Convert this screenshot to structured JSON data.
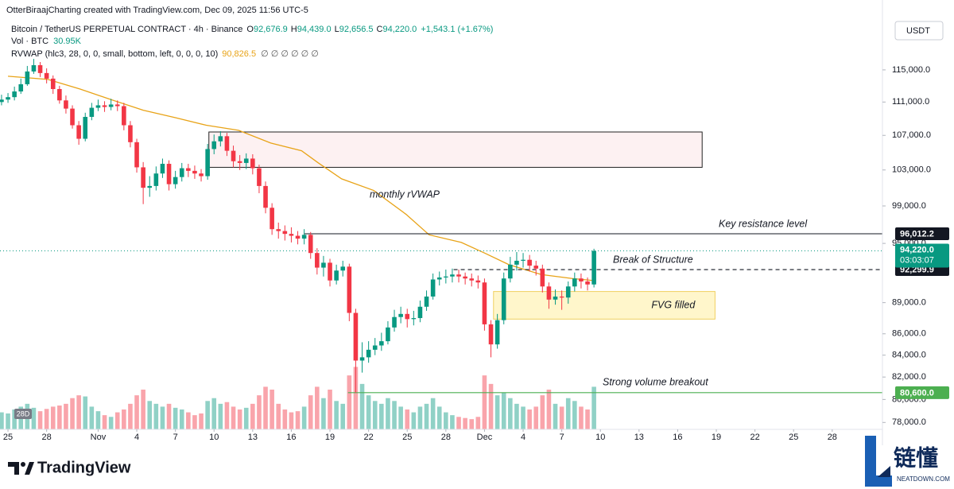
{
  "chart_data": {
    "type": "candlestick",
    "credit": "OtterBiraajCharting created with TradingView.com, Dec 09, 2025 11:56 UTC-5",
    "symbol": "Bitcoin / TetherUS PERPETUAL CONTRACT · 4h · Binance",
    "ohlc": [
      {
        "label": "O",
        "value": "92,676.9"
      },
      {
        "label": "H",
        "value": "94,439.0"
      },
      {
        "label": "L",
        "value": "92,656.5"
      },
      {
        "label": "C",
        "value": "94,220.0"
      }
    ],
    "change": "+1,543.1 (+1.67%)",
    "volume_legend": {
      "label": "Vol · BTC",
      "value": "30.95K"
    },
    "indicator": {
      "label": "RVWAP (hlc3, 28, 0, 0, small, bottom, left, 0, 0, 0, 10)",
      "value": "90,826.5",
      "extra": "∅ ∅ ∅ ∅ ∅ ∅"
    },
    "currency": "USDT",
    "badge": "28D",
    "brand": "TradingView",
    "corner_mark": {
      "text": "链懂",
      "sub": "NEATDOWN.COM"
    },
    "up_color": "#089981",
    "down_color": "#f23645",
    "log": true,
    "grid": false,
    "ylim": [
      77070,
      124200
    ],
    "yticks": [
      {
        "value": 115000,
        "label": "115,000.0"
      },
      {
        "value": 111000,
        "label": "111,000.0"
      },
      {
        "value": 107000,
        "label": "107,000.0"
      },
      {
        "value": 103000,
        "label": "103,000.0"
      },
      {
        "value": 99000,
        "label": "99,000.0"
      },
      {
        "value": 95000,
        "label": "95,000.0"
      },
      {
        "value": 89000,
        "label": "89,000.0"
      },
      {
        "value": 86000,
        "label": "86,000.0"
      },
      {
        "value": 84000,
        "label": "84,000.0"
      },
      {
        "value": 82000,
        "label": "82,000.0"
      },
      {
        "value": 80000,
        "label": "80,000.0"
      },
      {
        "value": 78000,
        "label": "78,000.0"
      }
    ],
    "xlim": [
      -0.62,
      67.9
    ],
    "xticks": [
      {
        "value": 0,
        "label": "25"
      },
      {
        "value": 3,
        "label": "28"
      },
      {
        "value": 7,
        "label": "Nov"
      },
      {
        "value": 10,
        "label": "4"
      },
      {
        "value": 13,
        "label": "7"
      },
      {
        "value": 16,
        "label": "10"
      },
      {
        "value": 19,
        "label": "13"
      },
      {
        "value": 22,
        "label": "16"
      },
      {
        "value": 25,
        "label": "19"
      },
      {
        "value": 28,
        "label": "22"
      },
      {
        "value": 31,
        "label": "25"
      },
      {
        "value": 34,
        "label": "28"
      },
      {
        "value": 37,
        "label": "Dec"
      },
      {
        "value": 40,
        "label": "4"
      },
      {
        "value": 43,
        "label": "7"
      },
      {
        "value": 46,
        "label": "10"
      },
      {
        "value": 49,
        "label": "13"
      },
      {
        "value": 52,
        "label": "16"
      },
      {
        "value": 55,
        "label": "19"
      },
      {
        "value": 58,
        "label": "22"
      },
      {
        "value": 61,
        "label": "25"
      },
      {
        "value": 64,
        "label": "28"
      }
    ],
    "vlim": [
      0,
      140
    ],
    "x": [
      -0.5,
      0,
      0.5,
      1,
      1.5,
      2,
      2.5,
      3,
      3.5,
      4,
      4.5,
      5,
      5.5,
      6,
      6.5,
      7,
      7.5,
      8,
      8.5,
      9,
      9.5,
      10,
      10.5,
      11,
      11.5,
      12,
      12.5,
      13,
      13.5,
      14,
      14.5,
      15,
      15.5,
      16,
      16.5,
      17,
      17.5,
      18,
      18.5,
      19,
      19.5,
      20,
      20.5,
      21,
      21.5,
      22,
      22.5,
      23,
      23.5,
      24,
      24.5,
      25,
      25.5,
      26,
      26.5,
      27,
      27.5,
      28,
      28.5,
      29,
      29.5,
      30,
      30.5,
      31,
      31.5,
      32,
      32.5,
      33,
      33.5,
      34,
      34.5,
      35,
      35.5,
      36,
      36.5,
      37,
      37.5,
      38,
      38.5,
      39,
      39.5,
      40,
      40.5,
      41,
      41.5,
      42,
      42.5,
      43,
      43.5,
      44,
      44.5,
      45,
      45.5
    ],
    "open": [
      111000,
      111300,
      111600,
      112300,
      113200,
      114800,
      115600,
      114600,
      113900,
      112600,
      111200,
      110200,
      108200,
      106600,
      109200,
      110300,
      110600,
      110400,
      110700,
      110500,
      108200,
      106200,
      103300,
      101000,
      101200,
      102600,
      103700,
      101400,
      102200,
      103200,
      102900,
      102600,
      102300,
      105400,
      106300,
      106900,
      105200,
      104000,
      103800,
      104300,
      103200,
      101200,
      98800,
      96500,
      96300,
      96000,
      95800,
      95500,
      95900,
      94000,
      92500,
      93000,
      91200,
      92200,
      92600,
      88000,
      83500,
      83800,
      84500,
      84900,
      85300,
      86600,
      87600,
      87900,
      87400,
      87500,
      88600,
      89600,
      91300,
      91500,
      91600,
      91800,
      91600,
      91400,
      91200,
      91000,
      86900,
      85000,
      87300,
      91400,
      92800,
      93200,
      93300,
      92700,
      92400,
      90600,
      89300,
      89600,
      89500,
      90600,
      91400,
      91100,
      90800
    ],
    "high": [
      111900,
      112100,
      112900,
      113900,
      115500,
      116400,
      116000,
      115200,
      114300,
      113000,
      111800,
      110600,
      108700,
      109700,
      110900,
      111300,
      111100,
      111400,
      111200,
      110900,
      108700,
      106600,
      103900,
      102300,
      103400,
      104300,
      104100,
      102900,
      103800,
      103700,
      103500,
      103100,
      106000,
      107100,
      107500,
      107300,
      105800,
      104700,
      104900,
      104800,
      103600,
      101700,
      99300,
      97200,
      96900,
      96700,
      96300,
      96500,
      96200,
      94500,
      93700,
      93400,
      92800,
      93200,
      92900,
      88400,
      85200,
      85300,
      85600,
      86100,
      87200,
      88300,
      88600,
      88400,
      88200,
      89200,
      90200,
      91900,
      92100,
      92300,
      92400,
      92300,
      92000,
      91900,
      91700,
      91400,
      87300,
      87900,
      92000,
      93600,
      94100,
      94000,
      93800,
      93200,
      92800,
      91000,
      90300,
      90200,
      91100,
      92000,
      91900,
      91500,
      94439
    ],
    "low": [
      110600,
      110900,
      111200,
      112000,
      113000,
      114500,
      114100,
      113300,
      112000,
      110800,
      109600,
      107800,
      105900,
      106300,
      108800,
      109900,
      109800,
      110000,
      109900,
      107600,
      105600,
      102700,
      99200,
      100000,
      100700,
      102100,
      100700,
      100900,
      101700,
      102200,
      102000,
      101700,
      101900,
      104800,
      105700,
      104600,
      103300,
      103000,
      103100,
      102500,
      100400,
      98200,
      95900,
      95500,
      95300,
      95100,
      94900,
      94900,
      93400,
      91800,
      91600,
      90600,
      90800,
      91600,
      87200,
      80600,
      82400,
      83300,
      84000,
      84400,
      85000,
      86200,
      87000,
      86600,
      86800,
      87100,
      88200,
      89300,
      90700,
      90900,
      91000,
      91000,
      90800,
      90600,
      90400,
      86300,
      83800,
      84600,
      86900,
      91000,
      92200,
      92500,
      92100,
      91700,
      90000,
      88400,
      88800,
      88300,
      88900,
      90100,
      90400,
      90200,
      90500
    ],
    "close": [
      111300,
      111600,
      112300,
      113200,
      114800,
      115600,
      114600,
      113900,
      112600,
      111200,
      110200,
      108200,
      106600,
      109200,
      110300,
      110600,
      110400,
      110700,
      110500,
      108200,
      106200,
      103300,
      101000,
      101200,
      102600,
      103700,
      101400,
      102200,
      103200,
      102900,
      102600,
      102300,
      105400,
      106300,
      106900,
      105200,
      104000,
      103800,
      104300,
      103200,
      101200,
      98800,
      96500,
      96300,
      96000,
      95800,
      95500,
      95900,
      94000,
      92500,
      93000,
      91200,
      92200,
      92600,
      88000,
      83500,
      83800,
      84500,
      84900,
      85300,
      86600,
      87600,
      87900,
      87400,
      87500,
      88600,
      89600,
      91300,
      91500,
      91600,
      91800,
      91600,
      91400,
      91200,
      91000,
      86900,
      85000,
      87300,
      91400,
      92800,
      93200,
      93300,
      92700,
      92400,
      90600,
      89300,
      89600,
      89500,
      90600,
      91400,
      91100,
      90800,
      94220
    ],
    "volume": [
      30,
      28,
      35,
      40,
      45,
      38,
      32,
      36,
      40,
      42,
      45,
      55,
      60,
      58,
      40,
      32,
      25,
      22,
      30,
      35,
      45,
      60,
      70,
      50,
      45,
      40,
      45,
      38,
      35,
      30,
      25,
      28,
      50,
      55,
      45,
      48,
      40,
      35,
      38,
      45,
      60,
      75,
      70,
      45,
      35,
      30,
      32,
      40,
      60,
      75,
      55,
      70,
      50,
      45,
      95,
      110,
      80,
      60,
      50,
      45,
      55,
      50,
      40,
      35,
      30,
      40,
      45,
      55,
      40,
      30,
      25,
      22,
      20,
      18,
      22,
      95,
      80,
      60,
      65,
      55,
      45,
      40,
      35,
      40,
      60,
      70,
      45,
      40,
      55,
      50,
      40,
      35,
      75
    ],
    "rvwap": {
      "label": "monthly rVWAP",
      "color": "#e8a317",
      "x": [
        0,
        3.1,
        5.6,
        8.0,
        10.5,
        13.0,
        15.4,
        17.9,
        20.4,
        22.8,
        24.1,
        25.9,
        28.4,
        30.9,
        32.7,
        35.2,
        37.0,
        38.9,
        41.4,
        43.8,
        45.4
      ],
      "values": [
        114200,
        113800,
        112600,
        111300,
        110000,
        109100,
        108200,
        107600,
        106100,
        105200,
        103800,
        102000,
        100700,
        98100,
        95900,
        95100,
        94000,
        92800,
        91800,
        91400,
        91200
      ]
    },
    "zones": [
      {
        "x0": 15.6,
        "x1": 53.9,
        "top": 107400,
        "bottom": 103300,
        "fill": "#fdeef0",
        "stroke": "#222222"
      },
      {
        "x0": 37.7,
        "x1": 54.9,
        "top": 90100,
        "bottom": 87400,
        "fill": "#fff5c2",
        "stroke": "#f0d060",
        "label": "FVG filled",
        "label_color": "#f23645"
      }
    ],
    "levels": [
      {
        "value": 96012.2,
        "label": "96,012.2",
        "x0": 23.0,
        "text": "Key resistance level",
        "color": "#131722",
        "dashed": false,
        "text_color": "#089981"
      },
      {
        "value": 92299.9,
        "label": "92,299.9",
        "x0": 34.6,
        "text": "Break of Structure",
        "color": "#131722",
        "dashed": true,
        "text_color": "#089981"
      },
      {
        "value": 80600,
        "label": "80,600.0",
        "x0": 26.4,
        "text": "Strong volume breakout",
        "color": "#4caf50",
        "dashed": false,
        "text_color": "#089981"
      }
    ],
    "last_price": {
      "value": 94220,
      "label": "94,220.0",
      "countdown": "03:03:07",
      "color": "#089981"
    }
  }
}
